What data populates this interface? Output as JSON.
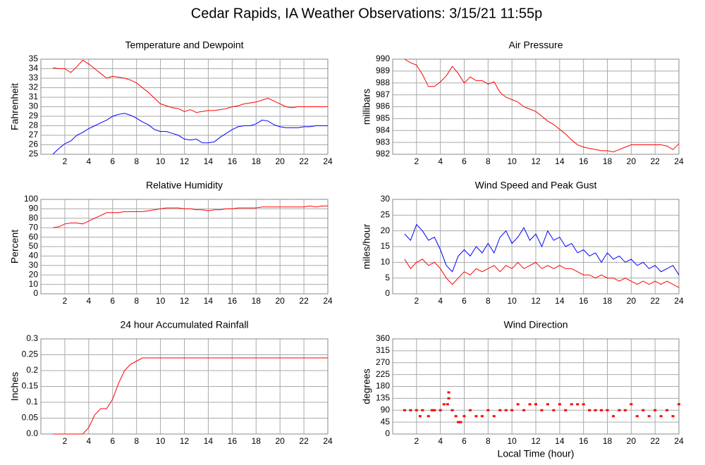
{
  "title": "Cedar Rapids, IA Weather Observations: 3/15/21 11:55p",
  "chart_data": [
    {
      "type": "line",
      "title": "Temperature and Dewpoint",
      "ylabel": "Fahrenheit",
      "x": [
        1,
        1.5,
        2,
        2.5,
        3,
        3.5,
        4,
        4.5,
        5,
        5.5,
        6,
        6.5,
        7,
        7.5,
        8,
        8.5,
        9,
        9.5,
        10,
        10.5,
        11,
        11.5,
        12,
        12.5,
        13,
        13.5,
        14,
        14.5,
        15,
        15.5,
        16,
        16.5,
        17,
        17.5,
        18,
        18.5,
        19,
        19.5,
        20,
        20.5,
        21,
        21.5,
        22,
        22.5,
        23,
        23.5,
        24
      ],
      "series": [
        {
          "color": "#ff0000",
          "values": [
            34.1,
            34.0,
            34.0,
            33.6,
            34.2,
            34.9,
            34.5,
            34.0,
            33.5,
            33.0,
            33.2,
            33.1,
            33.0,
            32.8,
            32.5,
            32.0,
            31.5,
            30.9,
            30.3,
            30.1,
            29.9,
            29.8,
            29.5,
            29.7,
            29.4,
            29.5,
            29.6,
            29.6,
            29.7,
            29.8,
            30.0,
            30.1,
            30.3,
            30.4,
            30.5,
            30.7,
            30.9,
            30.6,
            30.3,
            30.0,
            29.9,
            30.0,
            30.0,
            30.0,
            30.0,
            30.0,
            30.0
          ]
        },
        {
          "color": "#0000ff",
          "values": [
            25.0,
            25.6,
            26.1,
            26.4,
            27.0,
            27.3,
            27.7,
            28.0,
            28.3,
            28.6,
            29.0,
            29.2,
            29.3,
            29.1,
            28.8,
            28.4,
            28.1,
            27.6,
            27.4,
            27.4,
            27.2,
            27.0,
            26.6,
            26.5,
            26.6,
            26.2,
            26.2,
            26.3,
            26.8,
            27.2,
            27.6,
            27.9,
            28.0,
            28.0,
            28.2,
            28.6,
            28.5,
            28.1,
            27.9,
            27.8,
            27.8,
            27.8,
            27.9,
            27.9,
            28.0,
            28.0,
            28.0
          ]
        }
      ],
      "xlim": [
        0,
        24
      ],
      "xticks": [
        2,
        4,
        6,
        8,
        10,
        12,
        14,
        16,
        18,
        20,
        22,
        24
      ],
      "ylim": [
        25,
        35
      ],
      "yticks": [
        25,
        26,
        27,
        28,
        29,
        30,
        31,
        32,
        33,
        34,
        35
      ],
      "grid": true
    },
    {
      "type": "line",
      "title": "Air Pressure",
      "ylabel": "millibars",
      "x": [
        1,
        1.5,
        2,
        2.5,
        3,
        3.5,
        4,
        4.5,
        5,
        5.5,
        6,
        6.5,
        7,
        7.5,
        8,
        8.5,
        9,
        9.5,
        10,
        10.5,
        11,
        11.5,
        12,
        12.5,
        13,
        13.5,
        14,
        14.5,
        15,
        15.5,
        16,
        16.5,
        17,
        17.5,
        18,
        18.5,
        19,
        19.5,
        20,
        20.5,
        21,
        21.5,
        22,
        22.5,
        23,
        23.5,
        24
      ],
      "series": [
        {
          "color": "#ff0000",
          "values": [
            990.0,
            989.7,
            989.5,
            988.7,
            987.7,
            987.7,
            988.1,
            988.6,
            989.4,
            988.8,
            988.0,
            988.5,
            988.2,
            988.2,
            987.9,
            988.1,
            987.2,
            986.8,
            986.6,
            986.4,
            986.0,
            985.8,
            985.6,
            985.2,
            984.8,
            984.5,
            984.1,
            983.7,
            983.2,
            982.8,
            982.6,
            982.5,
            982.4,
            982.3,
            982.3,
            982.2,
            982.4,
            982.6,
            982.8,
            982.8,
            982.8,
            982.8,
            982.8,
            982.8,
            982.7,
            982.4,
            982.9
          ]
        }
      ],
      "xlim": [
        0,
        24
      ],
      "xticks": [
        2,
        4,
        6,
        8,
        10,
        12,
        14,
        16,
        18,
        20,
        22,
        24
      ],
      "ylim": [
        982,
        990
      ],
      "yticks": [
        982,
        983,
        984,
        985,
        986,
        987,
        988,
        989,
        990
      ],
      "grid": true
    },
    {
      "type": "line",
      "title": "Relative Humidity",
      "ylabel": "Percent",
      "x": [
        1,
        1.5,
        2,
        2.5,
        3,
        3.5,
        4,
        4.5,
        5,
        5.5,
        6,
        6.5,
        7,
        7.5,
        8,
        8.5,
        9,
        9.5,
        10,
        10.5,
        11,
        11.5,
        12,
        12.5,
        13,
        13.5,
        14,
        14.5,
        15,
        15.5,
        16,
        16.5,
        17,
        17.5,
        18,
        18.5,
        19,
        19.5,
        20,
        20.5,
        21,
        21.5,
        22,
        22.5,
        23,
        23.5,
        24
      ],
      "series": [
        {
          "color": "#ff0000",
          "values": [
            70,
            71,
            74,
            75,
            75,
            74,
            77,
            80,
            83,
            86,
            86,
            86,
            87,
            87,
            87,
            87,
            88,
            89,
            90,
            91,
            91,
            91,
            90,
            90,
            89,
            89,
            88,
            89,
            89,
            90,
            90,
            91,
            91,
            91,
            91,
            92,
            92,
            92,
            92,
            92,
            92,
            92,
            92,
            93,
            92,
            93,
            93
          ]
        }
      ],
      "xlim": [
        0,
        24
      ],
      "xticks": [
        2,
        4,
        6,
        8,
        10,
        12,
        14,
        16,
        18,
        20,
        22,
        24
      ],
      "ylim": [
        0,
        100
      ],
      "yticks": [
        0,
        10,
        20,
        30,
        40,
        50,
        60,
        70,
        80,
        90,
        100
      ],
      "grid": true
    },
    {
      "type": "line",
      "title": "Wind Speed and Peak Gust",
      "ylabel": "miles/hour",
      "x": [
        1,
        1.5,
        2,
        2.5,
        3,
        3.5,
        4,
        4.5,
        5,
        5.5,
        6,
        6.5,
        7,
        7.5,
        8,
        8.5,
        9,
        9.5,
        10,
        10.5,
        11,
        11.5,
        12,
        12.5,
        13,
        13.5,
        14,
        14.5,
        15,
        15.5,
        16,
        16.5,
        17,
        17.5,
        18,
        18.5,
        19,
        19.5,
        20,
        20.5,
        21,
        21.5,
        22,
        22.5,
        23,
        23.5,
        24
      ],
      "series": [
        {
          "color": "#0000ff",
          "values": [
            19,
            17,
            22,
            20,
            17,
            18,
            14,
            9,
            7,
            12,
            14,
            12,
            15,
            13,
            16,
            13,
            18,
            20,
            16,
            18,
            21,
            17,
            19,
            15,
            20,
            17,
            18,
            15,
            16,
            13,
            14,
            12,
            13,
            10,
            13,
            11,
            12,
            10,
            11,
            9,
            10,
            8,
            9,
            7,
            8,
            9,
            6
          ]
        },
        {
          "color": "#ff0000",
          "values": [
            11,
            8,
            10,
            11,
            9,
            10,
            8,
            5,
            3,
            5,
            7,
            6,
            8,
            7,
            8,
            9,
            7,
            9,
            8,
            10,
            8,
            9,
            10,
            8,
            9,
            8,
            9,
            8,
            8,
            7,
            6,
            6,
            5,
            6,
            5,
            5,
            4,
            5,
            4,
            3,
            4,
            3,
            4,
            3,
            4,
            3,
            2
          ]
        }
      ],
      "xlim": [
        0,
        24
      ],
      "xticks": [
        2,
        4,
        6,
        8,
        10,
        12,
        14,
        16,
        18,
        20,
        22,
        24
      ],
      "ylim": [
        0,
        30
      ],
      "yticks": [
        0,
        5,
        10,
        15,
        20,
        25,
        30
      ],
      "grid": true
    },
    {
      "type": "line",
      "title": "24 hour Accumulated Rainfall",
      "ylabel": "Inches",
      "x": [
        1,
        1.5,
        2,
        2.5,
        3,
        3.5,
        4,
        4.5,
        5,
        5.5,
        6,
        6.5,
        7,
        7.5,
        8,
        8.5,
        9,
        9.5,
        10,
        10.5,
        11,
        11.5,
        12,
        12.5,
        13,
        13.5,
        14,
        14.5,
        15,
        15.5,
        16,
        16.5,
        17,
        17.5,
        18,
        18.5,
        19,
        19.5,
        20,
        20.5,
        21,
        21.5,
        22,
        22.5,
        23,
        23.5,
        24
      ],
      "series": [
        {
          "color": "#ff0000",
          "values": [
            0,
            0,
            0,
            0,
            0,
            0,
            0.02,
            0.06,
            0.08,
            0.08,
            0.11,
            0.16,
            0.2,
            0.22,
            0.23,
            0.24,
            0.24,
            0.24,
            0.24,
            0.24,
            0.24,
            0.24,
            0.24,
            0.24,
            0.24,
            0.24,
            0.24,
            0.24,
            0.24,
            0.24,
            0.24,
            0.24,
            0.24,
            0.24,
            0.24,
            0.24,
            0.24,
            0.24,
            0.24,
            0.24,
            0.24,
            0.24,
            0.24,
            0.24,
            0.24,
            0.24,
            0.24
          ]
        }
      ],
      "xlim": [
        0,
        24
      ],
      "xticks": [
        2,
        4,
        6,
        8,
        10,
        12,
        14,
        16,
        18,
        20,
        22,
        24
      ],
      "ylim": [
        0,
        0.3
      ],
      "yticks": [
        {
          "value": 0,
          "label": "0.0"
        },
        0.05,
        0.1,
        0.15,
        0.2,
        0.25,
        0.3
      ],
      "grid": true
    },
    {
      "type": "scatter",
      "title": "Wind Direction",
      "ylabel": "degrees",
      "xlabel": "Local Time (hour)",
      "x": [
        1,
        1.5,
        2,
        2.3,
        2.5,
        3,
        3.3,
        3.5,
        4,
        4.3,
        4.6,
        4.7,
        4.7,
        5,
        5.3,
        5.5,
        5.7,
        6,
        6.5,
        7,
        7.5,
        8,
        8.5,
        9,
        9.5,
        10,
        10.5,
        11,
        11.5,
        12,
        12.5,
        13,
        13.5,
        14,
        14.5,
        15,
        15.5,
        16,
        16.5,
        17,
        17.5,
        18,
        18.5,
        19,
        19.5,
        20,
        20.5,
        21,
        21.5,
        22,
        22.5,
        23,
        23.5,
        24
      ],
      "series": [
        {
          "color": "#ff0000",
          "values": [
            90,
            90,
            90,
            67.5,
            90,
            67.5,
            90,
            90,
            90,
            112.5,
            112.5,
            157.5,
            135,
            90,
            67.5,
            45,
            45,
            67.5,
            90,
            67.5,
            67.5,
            90,
            67.5,
            90,
            90,
            90,
            112.5,
            90,
            112.5,
            112.5,
            90,
            112.5,
            90,
            112.5,
            90,
            112.5,
            112.5,
            112.5,
            90,
            90,
            90,
            90,
            67.5,
            90,
            90,
            112.5,
            67.5,
            90,
            67.5,
            90,
            67.5,
            90,
            67.5,
            112.5
          ]
        }
      ],
      "xlim": [
        0,
        24
      ],
      "xticks": [
        2,
        4,
        6,
        8,
        10,
        12,
        14,
        16,
        18,
        20,
        22,
        24
      ],
      "ylim": [
        0,
        360
      ],
      "yticks": [
        0,
        45,
        90,
        135,
        180,
        225,
        270,
        315,
        360
      ],
      "grid": true
    }
  ]
}
